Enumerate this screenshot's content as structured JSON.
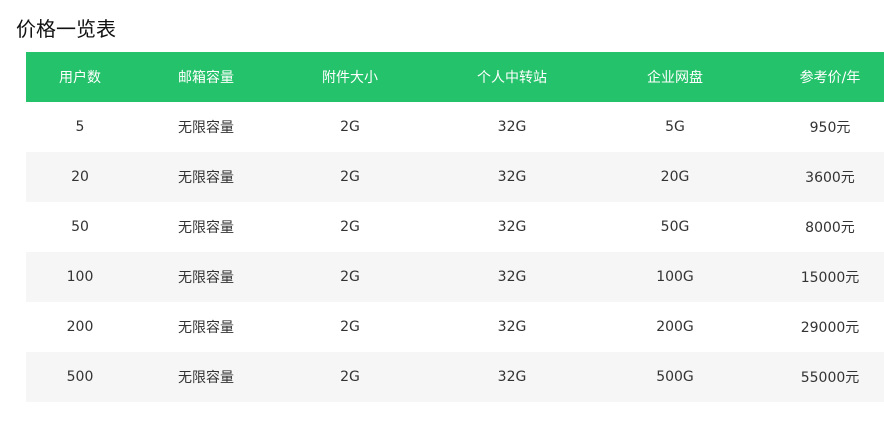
{
  "title": "价格一览表",
  "colors": {
    "header_bg": "#24c26a",
    "stripe": "#f6f6f6"
  },
  "headers": [
    "用户数",
    "邮箱容量",
    "附件大小",
    "个人中转站",
    "企业网盘",
    "参考价/年"
  ],
  "rows": [
    [
      "5",
      "无限容量",
      "2G",
      "32G",
      "5G",
      "950元"
    ],
    [
      "20",
      "无限容量",
      "2G",
      "32G",
      "20G",
      "3600元"
    ],
    [
      "50",
      "无限容量",
      "2G",
      "32G",
      "50G",
      "8000元"
    ],
    [
      "100",
      "无限容量",
      "2G",
      "32G",
      "100G",
      "15000元"
    ],
    [
      "200",
      "无限容量",
      "2G",
      "32G",
      "200G",
      "29000元"
    ],
    [
      "500",
      "无限容量",
      "2G",
      "32G",
      "500G",
      "55000元"
    ]
  ]
}
